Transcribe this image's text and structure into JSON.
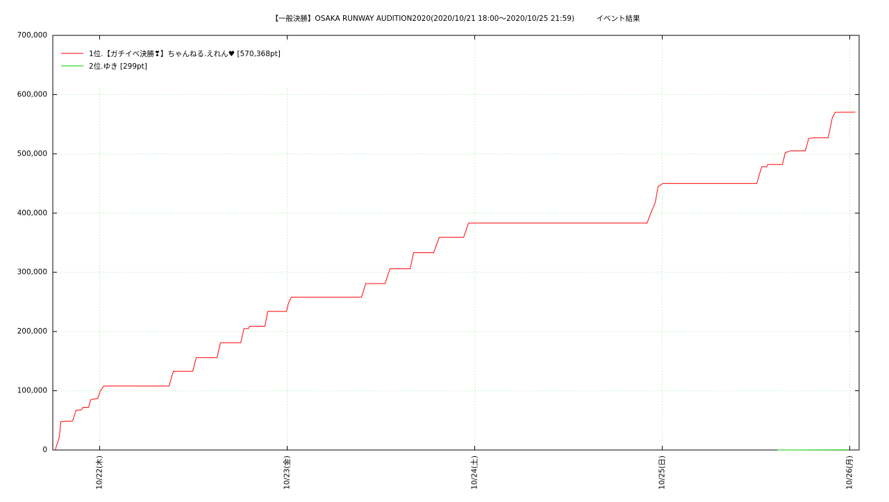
{
  "chart_data": {
    "type": "line",
    "title": "【一般決勝】OSAKA RUNWAY AUDITION2020(2020/10/21 18:00〜2020/10/25 21:59)　　　イベント結果",
    "xlim": [
      21.75,
      26.05
    ],
    "xticks": [
      {
        "value": 22,
        "label": "10/22(木)"
      },
      {
        "value": 23,
        "label": "10/23(金)"
      },
      {
        "value": 24,
        "label": "10/24(土)"
      },
      {
        "value": 25,
        "label": "10/25(日)"
      },
      {
        "value": 26,
        "label": "10/26(月)"
      }
    ],
    "ylim": [
      0,
      700000
    ],
    "yticks": [
      0,
      {
        "value": 100000,
        "label": "100,000"
      },
      {
        "value": 200000,
        "label": "200,000"
      },
      {
        "value": 300000,
        "label": "300,000"
      },
      {
        "value": 400000,
        "label": "400,000"
      },
      {
        "value": 500000,
        "label": "500,000"
      },
      {
        "value": 600000,
        "label": "600,000"
      },
      {
        "value": 700000,
        "label": "700,000"
      }
    ],
    "grid": true,
    "legend": "top-left",
    "series": [
      {
        "name": "1位.【ガチイベ決勝❣】ちゃんねる.えれん♥ [570,368pt]",
        "color": "#ff0000",
        "x": [
          21.763,
          21.785,
          21.793,
          21.856,
          21.874,
          21.904,
          21.911,
          21.941,
          21.952,
          21.989,
          22.004,
          22.022,
          22.37,
          22.393,
          22.496,
          22.515,
          22.626,
          22.644,
          22.752,
          22.77,
          22.793,
          22.8,
          22.881,
          22.896,
          22.996,
          23.007,
          23.022,
          23.396,
          23.419,
          23.522,
          23.548,
          23.656,
          23.674,
          23.781,
          23.811,
          23.941,
          23.967,
          24.919,
          24.937,
          24.963,
          24.978,
          25.004,
          25.504,
          25.53,
          25.556,
          25.563,
          25.641,
          25.656,
          25.685,
          25.763,
          25.781,
          25.807,
          25.885,
          25.907,
          25.922,
          26.03
        ],
        "values": [
          0,
          22000,
          48000,
          49000,
          67000,
          68000,
          72000,
          72000,
          85000,
          87000,
          100000,
          108000,
          108000,
          133000,
          133000,
          156000,
          156000,
          181000,
          181000,
          205000,
          205000,
          209000,
          209000,
          234000,
          234000,
          248000,
          258000,
          258000,
          281000,
          281000,
          306000,
          306000,
          333000,
          333000,
          359000,
          359000,
          383000,
          383000,
          398000,
          418000,
          445000,
          450000,
          450000,
          478000,
          478000,
          482000,
          482000,
          502000,
          505000,
          505000,
          526000,
          527000,
          527000,
          561000,
          570000,
          570368
        ]
      },
      {
        "name": "2位.ゆき [299pt]",
        "color": "#00cc00",
        "x": [
          25.615,
          25.996
        ],
        "values": [
          0,
          299
        ]
      }
    ]
  }
}
